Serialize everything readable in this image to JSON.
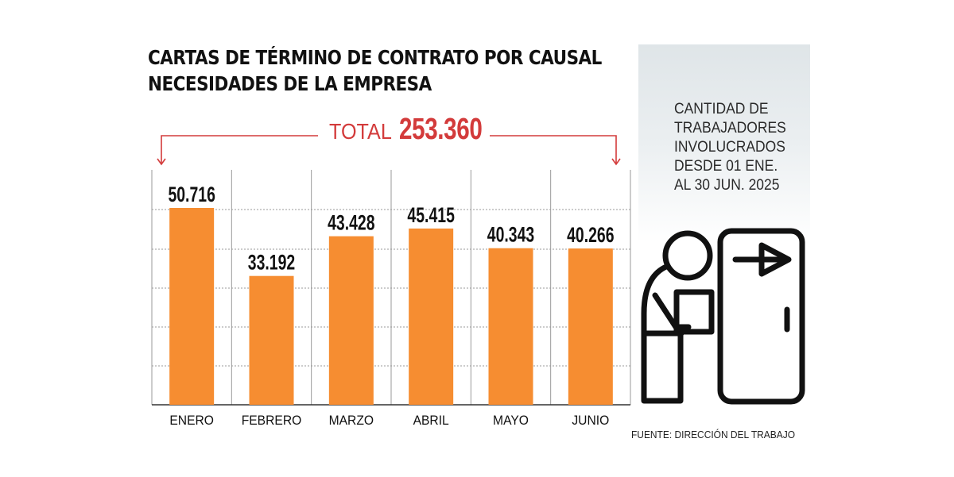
{
  "title_line1": "CARTAS DE TÉRMINO DE CONTRATO POR CAUSAL",
  "title_line2": "NECESIDADES DE LA EMPRESA",
  "total_label": "TOTAL",
  "total_value": "253.360",
  "side_text": "CANTIDAD DE\nTRABAJADORES\nINVOLUCRADOS\nDESDE 01 ENE.\nAL 30 JUN. 2025",
  "source": "FUENTE: DIRECCIÓN DEL TRABAJO",
  "icon": "worker-leaving-door-icon",
  "colors": {
    "bar": "#f68d31",
    "accent": "#d33b3b",
    "grid": "#9a9a9a"
  },
  "chart_data": {
    "type": "bar",
    "categories": [
      "ENERO",
      "FEBRERO",
      "MARZO",
      "ABRIL",
      "MAYO",
      "JUNIO"
    ],
    "values": [
      50716,
      33192,
      43428,
      45415,
      40343,
      40266
    ],
    "value_labels": [
      "50.716",
      "33.192",
      "43.428",
      "45.415",
      "40.343",
      "40.266"
    ],
    "ylim": [
      0,
      60000
    ],
    "grid": true,
    "legend": "none"
  }
}
